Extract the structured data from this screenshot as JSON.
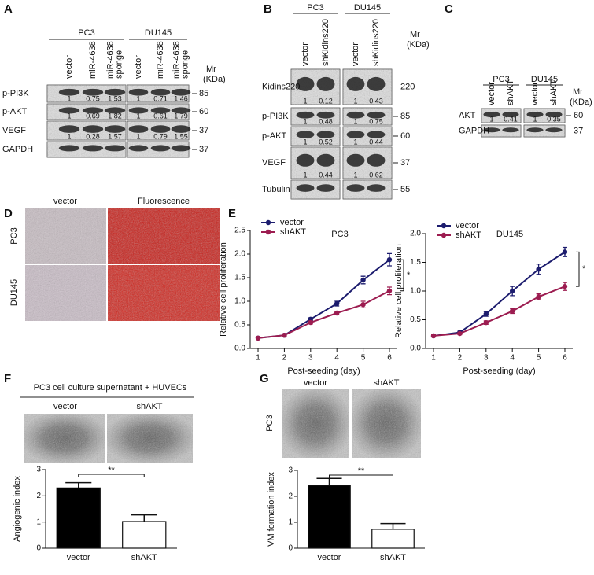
{
  "panel_labels": [
    "A",
    "B",
    "C",
    "D",
    "E",
    "F",
    "G"
  ],
  "blots": [
    {
      "groups": [
        {
          "name": "PC3",
          "lanes": [
            [
              "vector"
            ],
            [
              "miR-4638"
            ],
            [
              "miR-4638",
              "sponge"
            ]
          ]
        },
        {
          "name": "DU145",
          "lanes": [
            [
              "vector"
            ],
            [
              "miR-4638"
            ],
            [
              "miR-4638",
              "sponge"
            ]
          ]
        }
      ],
      "mr_title": [
        "Mr",
        "(KDa)"
      ],
      "rows": [
        {
          "name": "p-PI3K",
          "mr": 85,
          "quant": [
            [
              1,
              0.75,
              1.53
            ],
            [
              1,
              0.71,
              1.46
            ]
          ]
        },
        {
          "name": "p-AKT",
          "mr": 60,
          "quant": [
            [
              1,
              0.69,
              1.82
            ],
            [
              1,
              0.61,
              1.79
            ]
          ]
        },
        {
          "name": "VEGF",
          "mr": 37,
          "quant": [
            [
              1,
              0.28,
              1.57
            ],
            [
              1,
              0.79,
              1.55
            ]
          ]
        },
        {
          "name": "GAPDH",
          "mr": 37
        }
      ]
    },
    {
      "groups": [
        {
          "name": "PC3",
          "lanes": [
            [
              "vector"
            ],
            [
              "shKidins220"
            ]
          ]
        },
        {
          "name": "DU145",
          "lanes": [
            [
              "vector"
            ],
            [
              "shKidins220"
            ]
          ]
        }
      ],
      "mr_title": [
        "Mr",
        "(KDa)"
      ],
      "rows": [
        {
          "name": "Kidins220",
          "mr": 220,
          "quant": [
            [
              1,
              0.12
            ],
            [
              1,
              0.43
            ]
          ]
        },
        {
          "name": "p-PI3K",
          "mr": 85,
          "quant": [
            [
              1,
              0.48
            ],
            [
              1,
              0.75
            ]
          ]
        },
        {
          "name": "p-AKT",
          "mr": 60,
          "quant": [
            [
              1,
              0.52
            ],
            [
              1,
              0.44
            ]
          ]
        },
        {
          "name": "VEGF",
          "mr": 37,
          "quant": [
            [
              1,
              0.44
            ],
            [
              1,
              0.62
            ]
          ]
        },
        {
          "name": "Tubulin",
          "mr": 55
        }
      ]
    },
    {
      "groups": [
        {
          "name": "PC3",
          "lanes": [
            [
              "vector"
            ],
            [
              "shAKT"
            ]
          ]
        },
        {
          "name": "DU145",
          "lanes": [
            [
              "vector"
            ],
            [
              "shAKT"
            ]
          ]
        }
      ],
      "mr_title": [
        "Mr",
        "(KDa)"
      ],
      "rows": [
        {
          "name": "AKT",
          "mr": 60,
          "quant": [
            [
              1,
              0.41
            ],
            [
              1,
              0.35
            ]
          ]
        },
        {
          "name": "GAPDH",
          "mr": 37
        }
      ]
    }
  ],
  "images_d": {
    "columns": [
      "vector",
      "Fluorescence"
    ],
    "rows": [
      "PC3",
      "DU145"
    ]
  },
  "images_f": {
    "title": "PC3 cell culture supernatant + HUVECs",
    "columns": [
      "vector",
      "shAKT"
    ]
  },
  "images_g": {
    "columns": [
      "vector",
      "shAKT"
    ],
    "rows": [
      "PC3"
    ]
  },
  "chart_data": [
    {
      "type": "line",
      "title": "PC3",
      "x": [
        1,
        2,
        3,
        4,
        5,
        6
      ],
      "xlim": [
        0.7,
        6.3
      ],
      "xticks": [
        1,
        2,
        3,
        4,
        5,
        6
      ],
      "ylim": [
        0,
        2.5
      ],
      "yticks": [
        {
          "value": 0,
          "label": "0.0"
        },
        0.5,
        {
          "value": 1,
          "label": "1.0"
        },
        1.5,
        {
          "value": 2,
          "label": "2.0"
        },
        2.5
      ],
      "xlabel": "Post-seeding (day)",
      "ylabel": "Relative cell proliferation",
      "legend": "upper left",
      "series": [
        {
          "name": "vector",
          "color": "#1c1c6e",
          "values": [
            0.22,
            0.28,
            0.62,
            0.95,
            1.45,
            1.88
          ],
          "errors": [
            0.02,
            0.02,
            0.03,
            0.05,
            0.08,
            0.13
          ]
        },
        {
          "name": "shAKT",
          "color": "#9c1c50",
          "values": [
            0.22,
            0.28,
            0.55,
            0.75,
            0.93,
            1.22
          ],
          "errors": [
            0.02,
            0.02,
            0.03,
            0.03,
            0.07,
            0.08
          ]
        }
      ],
      "annotations": [
        "*"
      ]
    },
    {
      "type": "line",
      "title": "DU145",
      "x": [
        1,
        2,
        3,
        4,
        5,
        6
      ],
      "xlim": [
        0.7,
        6.3
      ],
      "xticks": [
        1,
        2,
        3,
        4,
        5,
        6
      ],
      "ylim": [
        0,
        2
      ],
      "yticks": [
        {
          "value": 0,
          "label": "0.0"
        },
        0.5,
        {
          "value": 1,
          "label": "1.0"
        },
        1.5,
        {
          "value": 2,
          "label": "2.0"
        }
      ],
      "xlabel": "Post-seeding (day)",
      "ylabel": "Relative cell proliferation",
      "legend": "upper left",
      "series": [
        {
          "name": "vector",
          "color": "#1c1c6e",
          "values": [
            0.22,
            0.28,
            0.6,
            1.0,
            1.38,
            1.68
          ],
          "errors": [
            0.02,
            0.02,
            0.04,
            0.08,
            0.09,
            0.08
          ]
        },
        {
          "name": "shAKT",
          "color": "#9c1c50",
          "values": [
            0.22,
            0.26,
            0.45,
            0.65,
            0.9,
            1.08
          ],
          "errors": [
            0.02,
            0.02,
            0.03,
            0.04,
            0.05,
            0.07
          ]
        }
      ],
      "annotations": [
        "*"
      ]
    },
    {
      "type": "bar",
      "categories": [
        "vector",
        "shAKT"
      ],
      "values": [
        2.3,
        1.02
      ],
      "errors": [
        0.2,
        0.25
      ],
      "colors": [
        "#000000",
        "#ffffff"
      ],
      "ylim": [
        0,
        3
      ],
      "yticks": [
        0,
        1,
        2,
        3
      ],
      "ylabel": "Angiogenic index",
      "annotations": [
        "**"
      ]
    },
    {
      "type": "bar",
      "categories": [
        "vector",
        "shAKT"
      ],
      "values": [
        2.42,
        0.73
      ],
      "errors": [
        0.27,
        0.22
      ],
      "colors": [
        "#000000",
        "#ffffff"
      ],
      "ylim": [
        0,
        3
      ],
      "yticks": [
        0,
        1,
        2,
        3
      ],
      "ylabel": "VM formation index",
      "annotations": [
        "**"
      ]
    }
  ]
}
